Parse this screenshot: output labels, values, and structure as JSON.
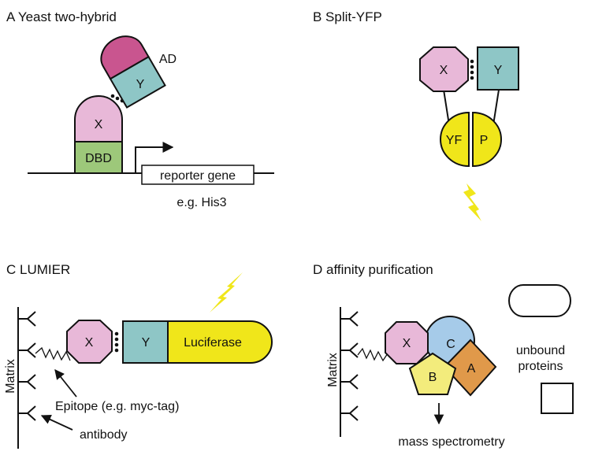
{
  "colors": {
    "pink": "#e8b8d8",
    "magenta": "#c9558f",
    "teal": "#8ec6c6",
    "green": "#9dc87a",
    "yellow": "#f0e61a",
    "blue": "#a6cbe9",
    "pale_yellow": "#f3ec7c",
    "orange": "#e0994a",
    "white": "#ffffff",
    "stroke": "#111111"
  },
  "panel_a": {
    "title": "A Yeast two-hybrid",
    "x": "X",
    "y": "Y",
    "ad": "AD",
    "dbd": "DBD",
    "reporter": "reporter gene",
    "example": "e.g. His3"
  },
  "panel_b": {
    "title": "B Split-YFP",
    "x": "X",
    "y": "Y",
    "yf": "YF",
    "p": "P"
  },
  "panel_c": {
    "title": "C LUMIER",
    "matrix": "Matrix",
    "x": "X",
    "y": "Y",
    "luciferase": "Luciferase",
    "epitope": "Epitope (e.g. myc-tag)",
    "antibody": "antibody"
  },
  "panel_d": {
    "title": "D affinity purification",
    "matrix": "Matrix",
    "x": "X",
    "c": "C",
    "b": "B",
    "a": "A",
    "unbound_line1": "unbound",
    "unbound_line2": "proteins",
    "ms": "mass spectrometry"
  }
}
